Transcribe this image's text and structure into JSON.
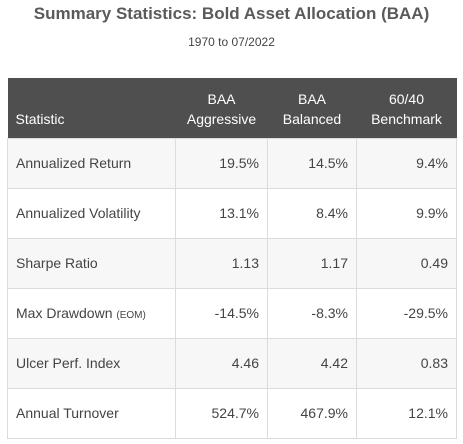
{
  "title": "Summary Statistics: Bold Asset Allocation (BAA)",
  "subtitle": "1970 to 07/2022",
  "table": {
    "header": {
      "statistic": "Statistic",
      "col1_line1": "BAA",
      "col1_line2": "Aggressive",
      "col2_line1": "BAA",
      "col2_line2": "Balanced",
      "col3_line1": "60/40",
      "col3_line2": "Benchmark"
    },
    "rows": [
      {
        "label": "Annualized Return",
        "note": "",
        "aggressive": "19.5%",
        "balanced": "14.5%",
        "benchmark": "9.4%"
      },
      {
        "label": "Annualized Volatility",
        "note": "",
        "aggressive": "13.1%",
        "balanced": "8.4%",
        "benchmark": "9.9%"
      },
      {
        "label": "Sharpe Ratio",
        "note": "",
        "aggressive": "1.13",
        "balanced": "1.17",
        "benchmark": "0.49"
      },
      {
        "label": "Max Drawdown",
        "note": "(EOM)",
        "aggressive": "-14.5%",
        "balanced": "-8.3%",
        "benchmark": "-29.5%"
      },
      {
        "label": "Ulcer Perf. Index",
        "note": "",
        "aggressive": "4.46",
        "balanced": "4.42",
        "benchmark": "0.83"
      },
      {
        "label": "Annual Turnover",
        "note": "",
        "aggressive": "524.7%",
        "balanced": "467.9%",
        "benchmark": "12.1%"
      }
    ]
  }
}
